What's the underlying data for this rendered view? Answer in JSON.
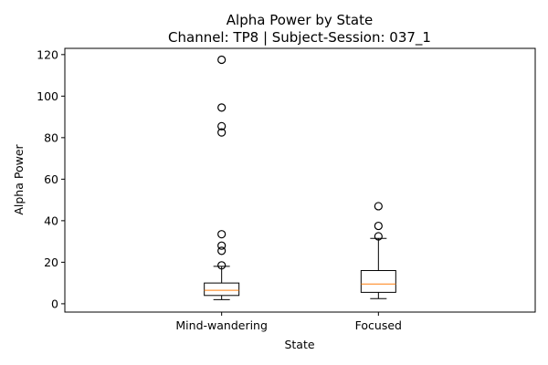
{
  "chart_data": {
    "type": "box",
    "title": "Alpha Power by State",
    "subtitle": "Channel: TP8 | Subject-Session: 037_1",
    "xlabel": "State",
    "ylabel": "Alpha Power",
    "ylim": [
      -4,
      123
    ],
    "yticks": [
      0,
      20,
      40,
      60,
      80,
      100,
      120
    ],
    "grid": false,
    "colors": {
      "box": "#000000",
      "median": "#ff7f0e",
      "flier": "#000000"
    },
    "categories": [
      "Mind-wandering",
      "Focused"
    ],
    "boxes": [
      {
        "category": "Mind-wandering",
        "whisker_low": 2,
        "q1": 4,
        "median": 6.5,
        "q3": 10,
        "whisker_high": 18,
        "fliers": [
          117.5,
          94.5,
          85.5,
          82.5,
          33.5,
          28,
          25.5,
          18.5
        ]
      },
      {
        "category": "Focused",
        "whisker_low": 2.5,
        "q1": 5.5,
        "median": 9.5,
        "q3": 16,
        "whisker_high": 31.5,
        "fliers": [
          47,
          37.5,
          32.5
        ]
      }
    ]
  }
}
